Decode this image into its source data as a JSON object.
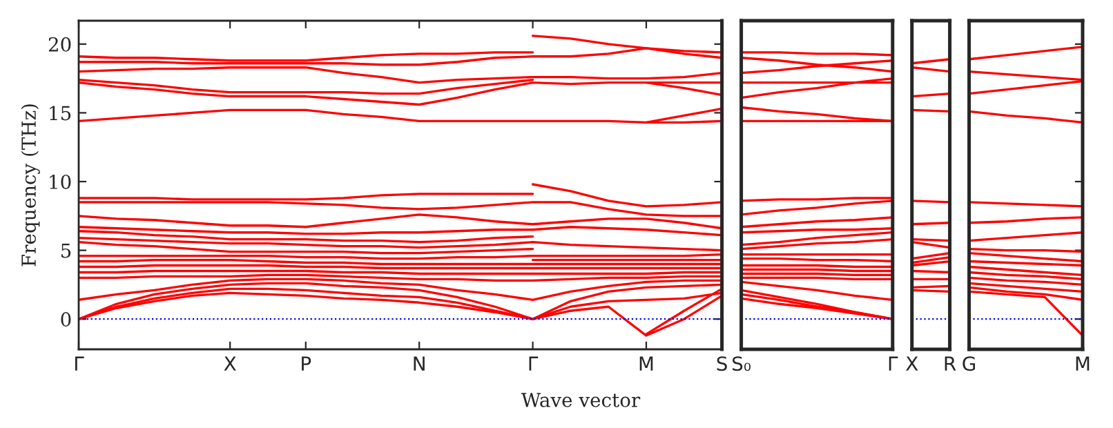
{
  "chart_data": [
    {
      "type": "line",
      "xlabel": "Wave vector",
      "ylabel": "Frequency (THz)",
      "ylim": [
        -2.2,
        21.7
      ],
      "yticks": [
        0,
        5,
        10,
        15,
        20
      ],
      "categories": [
        "Γ",
        null,
        null,
        null,
        "X",
        null,
        "P",
        null,
        null,
        "N",
        null,
        null,
        "Γ",
        null,
        null,
        "M",
        null,
        "S"
      ],
      "ref_lines": [
        {
          "axis": "y",
          "value": 0,
          "color": "#0000ff",
          "line_style": "dotted"
        }
      ],
      "series": [
        {
          "color": "#ff0000",
          "values": [
            0,
            0.8,
            1.3,
            1.7,
            1.9,
            1.8,
            1.7,
            1.5,
            1.4,
            1.2,
            0.9,
            0.5,
            0,
            0.6,
            0.9,
            -1.2,
            0.0,
            1.7
          ]
        },
        {
          "color": "#ff0000",
          "values": [
            0,
            0.9,
            1.5,
            1.9,
            2.2,
            2.2,
            2.1,
            1.9,
            1.7,
            1.6,
            1.2,
            0.6,
            0,
            0.9,
            1.3,
            1.4,
            1.5,
            1.9
          ]
        },
        {
          "color": "#ff0000",
          "values": [
            0,
            1.1,
            1.8,
            2.2,
            2.5,
            2.6,
            2.6,
            2.4,
            2.3,
            2.1,
            1.6,
            0.9,
            0,
            1.3,
            2.0,
            2.3,
            2.4,
            2.5
          ]
        },
        {
          "color": "#ff0000",
          "values": [
            1.4,
            1.8,
            2.1,
            2.5,
            2.8,
            2.9,
            2.9,
            2.8,
            2.6,
            2.5,
            2.1,
            1.8,
            1.4,
            2.0,
            2.4,
            2.7,
            2.8,
            2.8
          ]
        },
        {
          "color": "#ff0000",
          "values": [
            3.0,
            3.0,
            3.1,
            3.1,
            3.1,
            3.2,
            3.2,
            3.1,
            3.0,
            2.9,
            2.9,
            2.8,
            2.8,
            2.9,
            3.0,
            3.0,
            3.1,
            3.1
          ]
        },
        {
          "color": "#ff0000",
          "values": [
            3.4,
            3.4,
            3.5,
            3.5,
            3.5,
            3.5,
            3.5,
            3.4,
            3.4,
            3.3,
            3.3,
            3.3,
            3.3,
            3.3,
            3.3,
            3.3,
            3.4,
            3.4
          ]
        },
        {
          "color": "#ff0000",
          "values": [
            3.8,
            3.8,
            3.9,
            3.9,
            3.9,
            3.9,
            3.8,
            3.8,
            3.7,
            3.7,
            3.7,
            3.7,
            3.7,
            3.7,
            3.7,
            3.7,
            3.7,
            3.7
          ]
        },
        {
          "color": "#ff0000",
          "values": [
            4.2,
            4.2,
            4.3,
            4.3,
            4.3,
            4.2,
            4.1,
            4.1,
            4.0,
            4.0,
            4.0,
            4.0,
            4.0,
            4.0,
            4.0,
            4.0,
            4.0,
            4.0
          ]
        },
        {
          "color": "#ff0000",
          "values": [
            4.6,
            4.6,
            4.6,
            4.6,
            4.6,
            4.6,
            4.5,
            4.5,
            4.4,
            4.4,
            4.5,
            4.5,
            4.6,
            4.6,
            4.6,
            4.6,
            4.6,
            4.7
          ]
        },
        {
          "color": "#ff0000",
          "values": [
            5.6,
            5.4,
            5.3,
            5.1,
            4.9,
            4.9,
            4.9,
            4.9,
            4.8,
            4.8,
            4.9,
            5.0,
            5.1,
            null,
            null,
            null,
            null,
            null
          ]
        },
        {
          "color": "#ff0000",
          "values": [
            5.9,
            5.8,
            5.7,
            5.6,
            5.5,
            5.5,
            5.4,
            5.3,
            5.3,
            5.2,
            5.3,
            5.4,
            5.6,
            5.4,
            5.3,
            5.2,
            5.1,
            5.0
          ]
        },
        {
          "color": "#ff0000",
          "values": [
            6.4,
            6.3,
            6.1,
            6.0,
            5.8,
            5.8,
            5.8,
            5.7,
            5.7,
            5.6,
            5.7,
            5.9,
            6.0,
            null,
            null,
            null,
            null,
            null
          ]
        },
        {
          "color": "#ff0000",
          "values": [
            6.7,
            6.6,
            6.5,
            6.4,
            6.3,
            6.3,
            6.2,
            6.2,
            6.3,
            6.3,
            6.4,
            6.5,
            6.5,
            6.7,
            6.6,
            6.5,
            6.3,
            6.1
          ]
        },
        {
          "color": "#ff0000",
          "values": [
            7.5,
            7.3,
            7.2,
            7.0,
            6.8,
            6.8,
            6.7,
            7.0,
            7.3,
            7.6,
            7.4,
            7.1,
            6.9,
            7.1,
            7.3,
            7.3,
            7.0,
            6.6
          ]
        },
        {
          "color": "#ff0000",
          "values": [
            8.5,
            8.5,
            8.5,
            8.5,
            8.5,
            8.5,
            8.4,
            8.3,
            8.1,
            8.0,
            8.1,
            8.3,
            8.5,
            8.5,
            8.0,
            7.6,
            7.5,
            7.5
          ]
        },
        {
          "color": "#ff0000",
          "values": [
            8.8,
            8.8,
            8.8,
            8.7,
            8.7,
            8.7,
            8.7,
            8.8,
            9.0,
            9.1,
            9.1,
            9.1,
            9.1,
            null,
            null,
            null,
            null,
            null
          ]
        },
        {
          "color": "#ff0000",
          "values": [
            null,
            null,
            null,
            null,
            null,
            null,
            null,
            null,
            null,
            null,
            null,
            null,
            null,
            null,
            null,
            -1.1,
            0.6,
            2.2
          ]
        },
        {
          "color": "#ff0000",
          "values": [
            null,
            null,
            null,
            null,
            null,
            null,
            null,
            null,
            null,
            null,
            null,
            null,
            4.3,
            4.3,
            4.3,
            4.3,
            4.3,
            4.3
          ]
        },
        {
          "color": "#ff0000",
          "values": [
            null,
            null,
            null,
            null,
            null,
            null,
            null,
            null,
            null,
            null,
            null,
            null,
            9.8,
            9.3,
            8.6,
            8.2,
            8.3,
            8.5
          ]
        },
        {
          "color": "#ff0000",
          "values": [
            14.4,
            14.6,
            14.8,
            15.0,
            15.2,
            15.2,
            15.2,
            14.9,
            14.7,
            14.4,
            14.4,
            14.4,
            14.4,
            14.4,
            14.4,
            14.3,
            14.3,
            14.4
          ]
        },
        {
          "color": "#ff0000",
          "values": [
            null,
            null,
            null,
            null,
            null,
            null,
            null,
            null,
            null,
            null,
            null,
            null,
            null,
            null,
            null,
            14.3,
            14.8,
            15.3
          ]
        },
        {
          "color": "#ff0000",
          "values": [
            17.2,
            16.9,
            16.7,
            16.4,
            16.2,
            16.2,
            16.2,
            16.0,
            15.8,
            15.6,
            16.1,
            16.7,
            17.2,
            17.1,
            17.2,
            17.2,
            17.2,
            17.2
          ]
        },
        {
          "color": "#ff0000",
          "values": [
            null,
            null,
            null,
            null,
            null,
            null,
            null,
            null,
            null,
            null,
            null,
            null,
            null,
            null,
            null,
            17.2,
            16.8,
            16.3
          ]
        },
        {
          "color": "#ff0000",
          "values": [
            17.4,
            17.2,
            17.0,
            16.7,
            16.5,
            16.5,
            16.5,
            16.5,
            16.4,
            16.4,
            16.8,
            17.1,
            17.4,
            null,
            null,
            null,
            null,
            null
          ]
        },
        {
          "color": "#ff0000",
          "values": [
            18.0,
            18.1,
            18.2,
            18.2,
            18.3,
            18.3,
            18.3,
            17.9,
            17.6,
            17.2,
            17.4,
            17.5,
            17.6,
            17.6,
            17.5,
            17.5,
            17.6,
            17.9
          ]
        },
        {
          "color": "#ff0000",
          "values": [
            18.7,
            18.7,
            18.7,
            18.6,
            18.6,
            18.6,
            18.6,
            18.6,
            18.5,
            18.5,
            18.7,
            19.0,
            19.1,
            19.1,
            19.3,
            19.7,
            19.5,
            19.4
          ]
        },
        {
          "color": "#ff0000",
          "values": [
            19.1,
            19.0,
            19.0,
            18.9,
            18.8,
            18.8,
            18.8,
            19.0,
            19.2,
            19.3,
            19.3,
            19.4,
            19.4,
            null,
            null,
            null,
            null,
            null
          ]
        },
        {
          "color": "#ff0000",
          "values": [
            null,
            null,
            null,
            null,
            null,
            null,
            null,
            null,
            null,
            null,
            null,
            null,
            20.6,
            20.4,
            20.0,
            19.7,
            19.3,
            19.0
          ]
        }
      ]
    },
    {
      "type": "line",
      "ylim": [
        -2.2,
        21.7
      ],
      "yticks": [
        0,
        5,
        10,
        15,
        20
      ],
      "tick_labels": "x",
      "categories": [
        "S₀",
        null,
        null,
        null,
        "Γ"
      ],
      "ref_lines": [
        {
          "axis": "y",
          "value": 0,
          "color": "#0000ff",
          "line_style": "dotted"
        }
      ],
      "series": [
        {
          "color": "#ff0000",
          "values": [
            1.5,
            1.1,
            0.8,
            0.4,
            0
          ]
        },
        {
          "color": "#ff0000",
          "values": [
            1.8,
            1.4,
            0.9,
            0.5,
            0
          ]
        },
        {
          "color": "#ff0000",
          "values": [
            2.1,
            1.6,
            1.1,
            0.5,
            0
          ]
        },
        {
          "color": "#ff0000",
          "values": [
            2.7,
            2.4,
            2.1,
            1.7,
            1.4
          ]
        },
        {
          "color": "#ff0000",
          "values": [
            3.0,
            3.0,
            3.0,
            2.9,
            2.9
          ]
        },
        {
          "color": "#ff0000",
          "values": [
            3.3,
            3.3,
            3.3,
            3.2,
            3.2
          ]
        },
        {
          "color": "#ff0000",
          "values": [
            3.6,
            3.6,
            3.6,
            3.5,
            3.5
          ]
        },
        {
          "color": "#ff0000",
          "values": [
            3.9,
            3.9,
            3.9,
            3.8,
            3.8
          ]
        },
        {
          "color": "#ff0000",
          "values": [
            4.4,
            4.4,
            4.3,
            4.3,
            4.2
          ]
        },
        {
          "color": "#ff0000",
          "values": [
            4.7,
            4.7,
            4.7,
            4.7,
            4.7
          ]
        },
        {
          "color": "#ff0000",
          "values": [
            5.1,
            5.3,
            5.5,
            5.6,
            5.8
          ]
        },
        {
          "color": "#ff0000",
          "values": [
            5.4,
            5.6,
            5.9,
            6.1,
            6.3
          ]
        },
        {
          "color": "#ff0000",
          "values": [
            6.3,
            6.4,
            6.5,
            6.5,
            6.6
          ]
        },
        {
          "color": "#ff0000",
          "values": [
            6.7,
            6.9,
            7.1,
            7.2,
            7.4
          ]
        },
        {
          "color": "#ff0000",
          "values": [
            7.6,
            7.9,
            8.1,
            8.4,
            8.6
          ]
        },
        {
          "color": "#ff0000",
          "values": [
            8.6,
            8.7,
            8.7,
            8.8,
            8.8
          ]
        },
        {
          "color": "#ff0000",
          "values": [
            14.4,
            14.4,
            14.4,
            14.4,
            14.4
          ]
        },
        {
          "color": "#ff0000",
          "values": [
            15.4,
            15.1,
            14.9,
            14.6,
            14.4
          ]
        },
        {
          "color": "#ff0000",
          "values": [
            16.1,
            16.5,
            16.8,
            17.2,
            17.5
          ]
        },
        {
          "color": "#ff0000",
          "values": [
            17.2,
            17.2,
            17.2,
            17.2,
            17.2
          ]
        },
        {
          "color": "#ff0000",
          "values": [
            17.9,
            18.1,
            18.4,
            18.6,
            18.8
          ]
        },
        {
          "color": "#ff0000",
          "values": [
            19.0,
            18.8,
            18.5,
            18.3,
            18.0
          ]
        },
        {
          "color": "#ff0000",
          "values": [
            19.4,
            19.4,
            19.3,
            19.3,
            19.2
          ]
        }
      ]
    },
    {
      "type": "line",
      "ylim": [
        -2.2,
        21.7
      ],
      "yticks": [
        0,
        5,
        10,
        15,
        20
      ],
      "tick_labels": "x",
      "categories": [
        "X",
        "R"
      ],
      "ref_lines": [
        {
          "axis": "y",
          "value": 0,
          "color": "#0000ff",
          "line_style": "dotted"
        }
      ],
      "series": [
        {
          "color": "#ff0000",
          "values": [
            2.1,
            2.0
          ]
        },
        {
          "color": "#ff0000",
          "values": [
            2.3,
            2.4
          ]
        },
        {
          "color": "#ff0000",
          "values": [
            2.9,
            2.9
          ]
        },
        {
          "color": "#ff0000",
          "values": [
            3.5,
            3.4
          ]
        },
        {
          "color": "#ff0000",
          "values": [
            3.9,
            4.2
          ]
        },
        {
          "color": "#ff0000",
          "values": [
            4.1,
            4.5
          ]
        },
        {
          "color": "#ff0000",
          "values": [
            4.4,
            4.8
          ]
        },
        {
          "color": "#ff0000",
          "values": [
            5.6,
            5.2
          ]
        },
        {
          "color": "#ff0000",
          "values": [
            5.8,
            5.7
          ]
        },
        {
          "color": "#ff0000",
          "values": [
            6.9,
            7.0
          ]
        },
        {
          "color": "#ff0000",
          "values": [
            8.6,
            8.5
          ]
        },
        {
          "color": "#ff0000",
          "values": [
            15.2,
            15.1
          ]
        },
        {
          "color": "#ff0000",
          "values": [
            16.2,
            16.4
          ]
        },
        {
          "color": "#ff0000",
          "values": [
            18.3,
            18.0
          ]
        },
        {
          "color": "#ff0000",
          "values": [
            18.6,
            18.9
          ]
        }
      ]
    },
    {
      "type": "line",
      "ylim": [
        -2.2,
        21.7
      ],
      "yticks": [
        0,
        5,
        10,
        15,
        20
      ],
      "tick_labels": "x",
      "categories": [
        "G",
        null,
        null,
        "M"
      ],
      "ref_lines": [
        {
          "axis": "y",
          "value": 0,
          "color": "#0000ff",
          "line_style": "dotted"
        }
      ],
      "series": [
        {
          "color": "#ff0000",
          "values": [
            2.0,
            1.8,
            1.6,
            -1.2
          ]
        },
        {
          "color": "#ff0000",
          "values": [
            2.3,
            2.0,
            1.8,
            1.4
          ]
        },
        {
          "color": "#ff0000",
          "values": [
            2.6,
            2.4,
            2.2,
            2.0
          ]
        },
        {
          "color": "#ff0000",
          "values": [
            3.0,
            2.8,
            2.7,
            2.5
          ]
        },
        {
          "color": "#ff0000",
          "values": [
            3.4,
            3.2,
            3.1,
            2.9
          ]
        },
        {
          "color": "#ff0000",
          "values": [
            3.8,
            3.6,
            3.4,
            3.2
          ]
        },
        {
          "color": "#ff0000",
          "values": [
            4.2,
            4.1,
            4.0,
            3.9
          ]
        },
        {
          "color": "#ff0000",
          "values": [
            4.8,
            4.6,
            4.4,
            4.2
          ]
        },
        {
          "color": "#ff0000",
          "values": [
            5.1,
            5.0,
            5.0,
            4.9
          ]
        },
        {
          "color": "#ff0000",
          "values": [
            5.7,
            5.9,
            6.1,
            6.3
          ]
        },
        {
          "color": "#ff0000",
          "values": [
            7.0,
            7.1,
            7.3,
            7.4
          ]
        },
        {
          "color": "#ff0000",
          "values": [
            8.5,
            8.4,
            8.3,
            8.2
          ]
        },
        {
          "color": "#ff0000",
          "values": [
            15.1,
            14.8,
            14.6,
            14.3
          ]
        },
        {
          "color": "#ff0000",
          "values": [
            16.4,
            16.7,
            17.0,
            17.3
          ]
        },
        {
          "color": "#ff0000",
          "values": [
            18.0,
            17.8,
            17.6,
            17.4
          ]
        },
        {
          "color": "#ff0000",
          "values": [
            18.9,
            19.2,
            19.5,
            19.8
          ]
        }
      ]
    }
  ]
}
